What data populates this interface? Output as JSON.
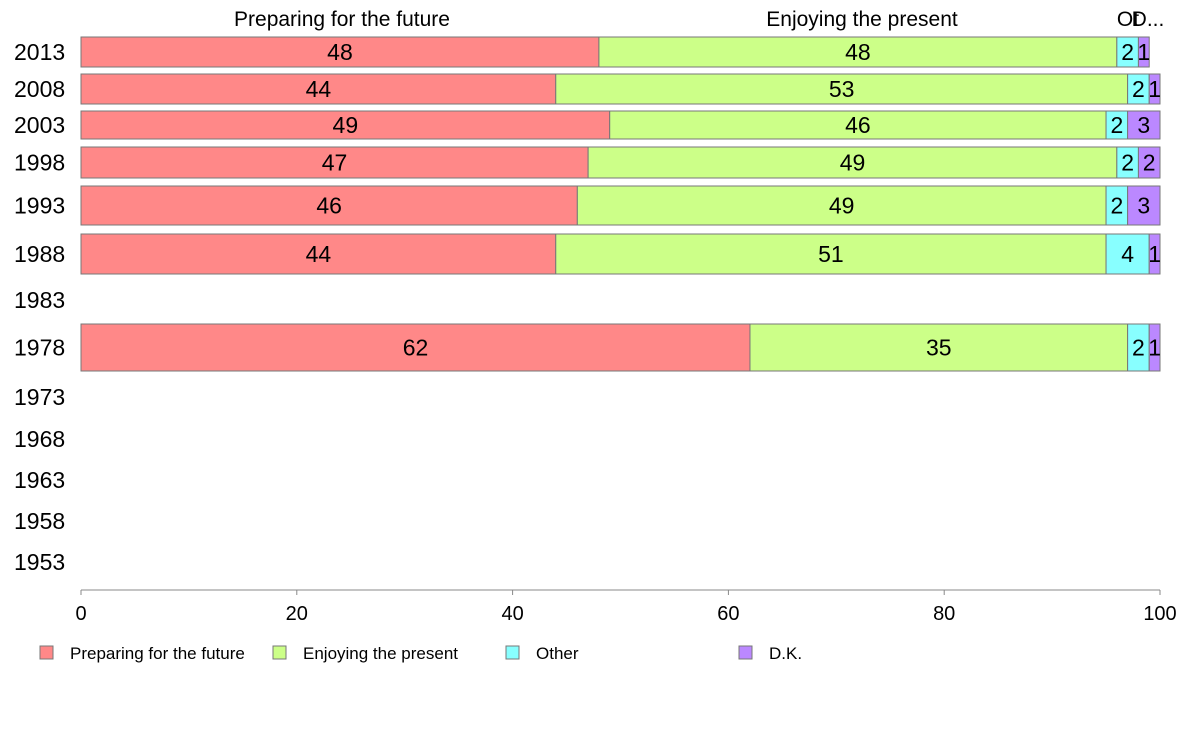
{
  "chart_data": {
    "type": "bar",
    "orientation": "horizontal",
    "stacked": true,
    "categories": [
      "2013",
      "2008",
      "2003",
      "1998",
      "1993",
      "1988",
      "1983",
      "1978",
      "1973",
      "1968",
      "1963",
      "1958",
      "1953"
    ],
    "series": [
      {
        "name": "Preparing for the future",
        "color": "#ff8888",
        "values": [
          48,
          44,
          49,
          47,
          46,
          44,
          null,
          62,
          null,
          null,
          null,
          null,
          null
        ]
      },
      {
        "name": "Enjoying the present",
        "color": "#ccff88",
        "values": [
          48,
          53,
          46,
          49,
          49,
          51,
          null,
          35,
          null,
          null,
          null,
          null,
          null
        ]
      },
      {
        "name": "Other",
        "color": "#88ffff",
        "values": [
          2,
          2,
          2,
          2,
          2,
          4,
          null,
          2,
          null,
          null,
          null,
          null,
          null
        ]
      },
      {
        "name": "D.K.",
        "color": "#bb88ff",
        "values": [
          1,
          1,
          3,
          2,
          3,
          1,
          null,
          1,
          null,
          null,
          null,
          null,
          null
        ]
      }
    ],
    "top_labels": [
      "Preparing for the future",
      "Enjoying the present",
      "Ot",
      "D..."
    ],
    "xlim": [
      0,
      100
    ],
    "xticks": [
      0,
      20,
      40,
      60,
      80,
      100
    ],
    "legend_position": "bottom",
    "grid": false
  }
}
